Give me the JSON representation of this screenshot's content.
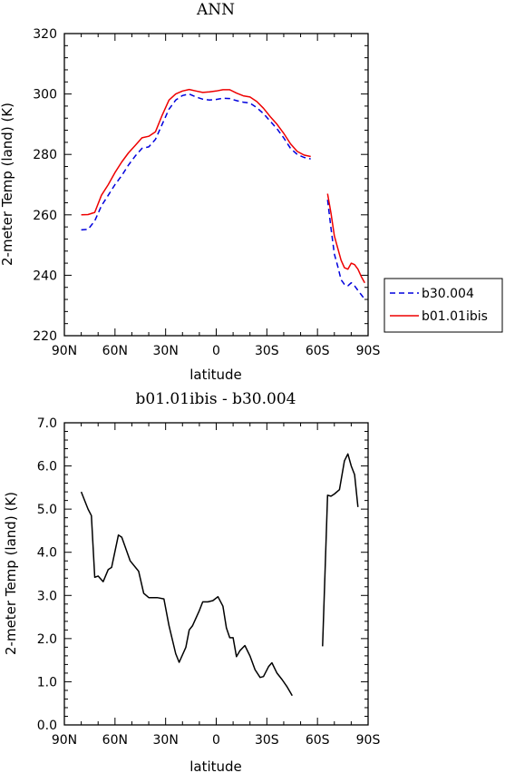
{
  "chart_data": [
    {
      "type": "line",
      "title": "ANN",
      "xlabel": "latitude",
      "ylabel": "2-meter Temp (land) (K)",
      "xlim": [
        90,
        -90
      ],
      "ylim": [
        220,
        320
      ],
      "x_ticks": [
        90,
        60,
        30,
        0,
        -30,
        -60,
        -90
      ],
      "x_tick_labels": [
        "90N",
        "60N",
        "30N",
        "0",
        "30S",
        "60S",
        "90S"
      ],
      "y_ticks": [
        220,
        240,
        260,
        280,
        300,
        320
      ],
      "y_tick_labels": [
        "220",
        "240",
        "260",
        "280",
        "300",
        "320"
      ],
      "legend_position": "outside-right",
      "series": [
        {
          "name": "b30.004",
          "color": "#0000dd",
          "style": "dashed",
          "segments": [
            [
              [
                80,
                255
              ],
              [
                76,
                255.2
              ],
              [
                72,
                258
              ],
              [
                68,
                263
              ],
              [
                64,
                266.5
              ],
              [
                60,
                270
              ],
              [
                56,
                273
              ],
              [
                52,
                276.5
              ],
              [
                48,
                279.5
              ],
              [
                44,
                282
              ],
              [
                40,
                282.5
              ],
              [
                36,
                285
              ],
              [
                32,
                290
              ],
              [
                28,
                295
              ],
              [
                24,
                298
              ],
              [
                20,
                299.5
              ],
              [
                16,
                300
              ],
              [
                12,
                299
              ],
              [
                8,
                298.3
              ],
              [
                4,
                298
              ],
              [
                0,
                298.2
              ],
              [
                -4,
                298.6
              ],
              [
                -8,
                298.5
              ],
              [
                -12,
                297.8
              ],
              [
                -16,
                297.3
              ],
              [
                -20,
                297
              ],
              [
                -24,
                295.5
              ],
              [
                -28,
                293.5
              ],
              [
                -32,
                291
              ],
              [
                -36,
                288.5
              ],
              [
                -40,
                285.5
              ],
              [
                -44,
                282
              ],
              [
                -48,
                280
              ],
              [
                -52,
                279
              ],
              [
                -56,
                278.5
              ]
            ],
            [
              [
                -66,
                265
              ],
              [
                -68,
                255.5
              ],
              [
                -70,
                247
              ],
              [
                -72,
                243
              ],
              [
                -74,
                238.5
              ],
              [
                -76,
                237
              ],
              [
                -78,
                236.5
              ],
              [
                -80,
                237.5
              ],
              [
                -82,
                236.5
              ],
              [
                -84,
                235
              ],
              [
                -86,
                233.5
              ],
              [
                -88,
                232
              ]
            ]
          ]
        },
        {
          "name": "b01.01ibis",
          "color": "#ee0000",
          "style": "solid",
          "segments": [
            [
              [
                80,
                260
              ],
              [
                76,
                260.1
              ],
              [
                72,
                260.8
              ],
              [
                68,
                266.5
              ],
              [
                64,
                270
              ],
              [
                60,
                274
              ],
              [
                56,
                277.5
              ],
              [
                52,
                280.5
              ],
              [
                48,
                283
              ],
              [
                44,
                285.5
              ],
              [
                40,
                286
              ],
              [
                36,
                287.5
              ],
              [
                32,
                293
              ],
              [
                28,
                298
              ],
              [
                24,
                300
              ],
              [
                20,
                301
              ],
              [
                16,
                301.5
              ],
              [
                12,
                301
              ],
              [
                8,
                300.5
              ],
              [
                4,
                300.7
              ],
              [
                0,
                301
              ],
              [
                -4,
                301.4
              ],
              [
                -8,
                301.4
              ],
              [
                -12,
                300.3
              ],
              [
                -16,
                299.4
              ],
              [
                -20,
                299
              ],
              [
                -24,
                297.5
              ],
              [
                -28,
                295.3
              ],
              [
                -32,
                292.5
              ],
              [
                -36,
                290
              ],
              [
                -40,
                287
              ],
              [
                -44,
                283.5
              ],
              [
                -48,
                281
              ],
              [
                -52,
                279.8
              ],
              [
                -56,
                279.3
              ]
            ],
            [
              [
                -66,
                267
              ],
              [
                -68,
                260.5
              ],
              [
                -70,
                253
              ],
              [
                -72,
                249
              ],
              [
                -74,
                245
              ],
              [
                -76,
                242.5
              ],
              [
                -78,
                242
              ],
              [
                -80,
                244
              ],
              [
                -82,
                243.5
              ],
              [
                -84,
                242
              ],
              [
                -86,
                239.5
              ],
              [
                -88,
                237.5
              ]
            ]
          ]
        }
      ]
    },
    {
      "type": "line",
      "title": "b01.01ibis - b30.004",
      "xlabel": "latitude",
      "ylabel": "2-meter Temp (land) (K)",
      "xlim": [
        90,
        -90
      ],
      "ylim": [
        0,
        7
      ],
      "x_ticks": [
        90,
        60,
        30,
        0,
        -30,
        -60,
        -90
      ],
      "x_tick_labels": [
        "90N",
        "60N",
        "30N",
        "0",
        "30S",
        "60S",
        "90S"
      ],
      "y_ticks": [
        0,
        1,
        2,
        3,
        4,
        5,
        6,
        7
      ],
      "y_tick_labels": [
        "0.0",
        "1.0",
        "2.0",
        "3.0",
        "4.0",
        "5.0",
        "6.0",
        "7.0"
      ],
      "series": [
        {
          "color": "#000000",
          "style": "solid",
          "segments": [
            [
              [
                80,
                5.4
              ],
              [
                76,
                5.0
              ],
              [
                74,
                4.85
              ],
              [
                72,
                3.42
              ],
              [
                70,
                3.45
              ],
              [
                67,
                3.32
              ],
              [
                64,
                3.6
              ],
              [
                62,
                3.65
              ],
              [
                58,
                4.4
              ],
              [
                56,
                4.35
              ],
              [
                51,
                3.8
              ],
              [
                46,
                3.56
              ],
              [
                43,
                3.05
              ],
              [
                40,
                2.95
              ],
              [
                35,
                2.95
              ],
              [
                31,
                2.92
              ],
              [
                28,
                2.3
              ],
              [
                24,
                1.65
              ],
              [
                22,
                1.45
              ],
              [
                18,
                1.8
              ],
              [
                16,
                2.2
              ],
              [
                14,
                2.3
              ],
              [
                10,
                2.65
              ],
              [
                8,
                2.85
              ],
              [
                5,
                2.85
              ],
              [
                2,
                2.88
              ],
              [
                -1,
                2.97
              ],
              [
                -4,
                2.75
              ],
              [
                -6,
                2.25
              ],
              [
                -8,
                2.02
              ],
              [
                -10,
                2.02
              ],
              [
                -12,
                1.58
              ],
              [
                -14,
                1.72
              ],
              [
                -17,
                1.84
              ],
              [
                -20,
                1.6
              ],
              [
                -23,
                1.28
              ],
              [
                -26,
                1.1
              ],
              [
                -28,
                1.12
              ],
              [
                -31,
                1.35
              ],
              [
                -33,
                1.44
              ],
              [
                -36,
                1.2
              ],
              [
                -39,
                1.05
              ],
              [
                -42,
                0.88
              ],
              [
                -45,
                0.68
              ]
            ],
            [
              [
                -63,
                1.82
              ],
              [
                -66,
                5.32
              ],
              [
                -68,
                5.3
              ],
              [
                -70,
                5.35
              ],
              [
                -73,
                5.45
              ],
              [
                -76,
                6.12
              ],
              [
                -78,
                6.28
              ],
              [
                -80,
                6.0
              ],
              [
                -82,
                5.8
              ],
              [
                -84,
                5.05
              ]
            ]
          ]
        }
      ]
    }
  ]
}
